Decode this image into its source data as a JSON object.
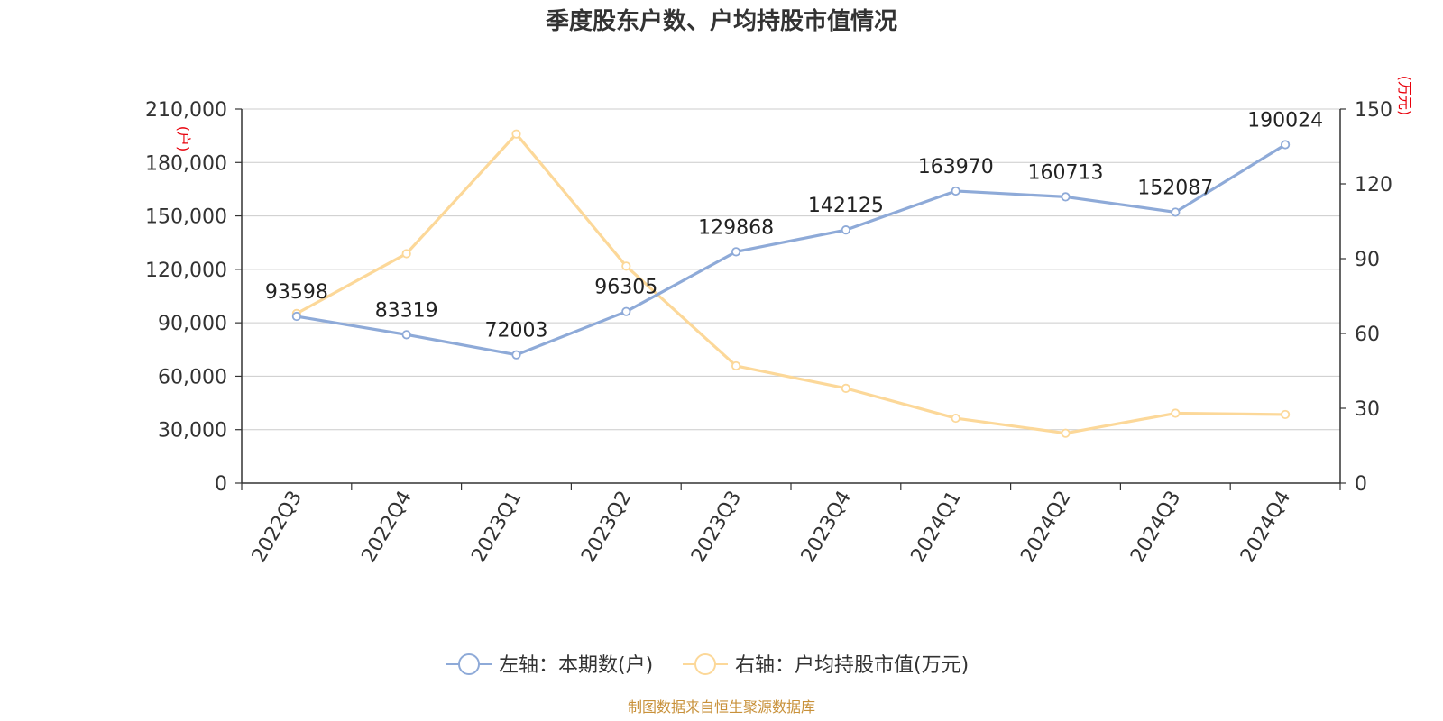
{
  "source": "制图数据来自恒生聚源数据库",
  "chart_data": {
    "type": "line",
    "title": "季度股东户数、户均持股市值情况",
    "categories": [
      "2022Q3",
      "2022Q4",
      "2023Q1",
      "2023Q2",
      "2023Q3",
      "2023Q4",
      "2024Q1",
      "2024Q2",
      "2024Q3",
      "2024Q4"
    ],
    "left_axis": {
      "unit": "(户)",
      "ylim": [
        0,
        210000
      ],
      "ticks": [
        0,
        30000,
        60000,
        90000,
        120000,
        150000,
        180000,
        210000
      ],
      "tick_labels": [
        "0",
        "30,000",
        "60,000",
        "90,000",
        "120,000",
        "150,000",
        "180,000",
        "210,000"
      ]
    },
    "right_axis": {
      "unit": "(万元)",
      "ylim": [
        0,
        150
      ],
      "ticks": [
        0,
        30,
        60,
        90,
        120,
        150
      ],
      "tick_labels": [
        "0",
        "30",
        "60",
        "90",
        "120",
        "150"
      ]
    },
    "grid": true,
    "legend_position": "bottom",
    "series": [
      {
        "name": "左轴：本期数(户)",
        "axis": "left",
        "color": "#8eaad8",
        "values": [
          93598,
          83319,
          72003,
          96305,
          129868,
          142125,
          163970,
          160713,
          152087,
          190024
        ],
        "data_labels": [
          "93598",
          "83319",
          "72003",
          "96305",
          "129868",
          "142125",
          "163970",
          "160713",
          "152087",
          "190024"
        ]
      },
      {
        "name": "右轴：户均持股市值(万元)",
        "axis": "right",
        "color": "#fcd899",
        "values": [
          68,
          92,
          140,
          87,
          47,
          38,
          26,
          20,
          28,
          27.5
        ]
      }
    ]
  }
}
